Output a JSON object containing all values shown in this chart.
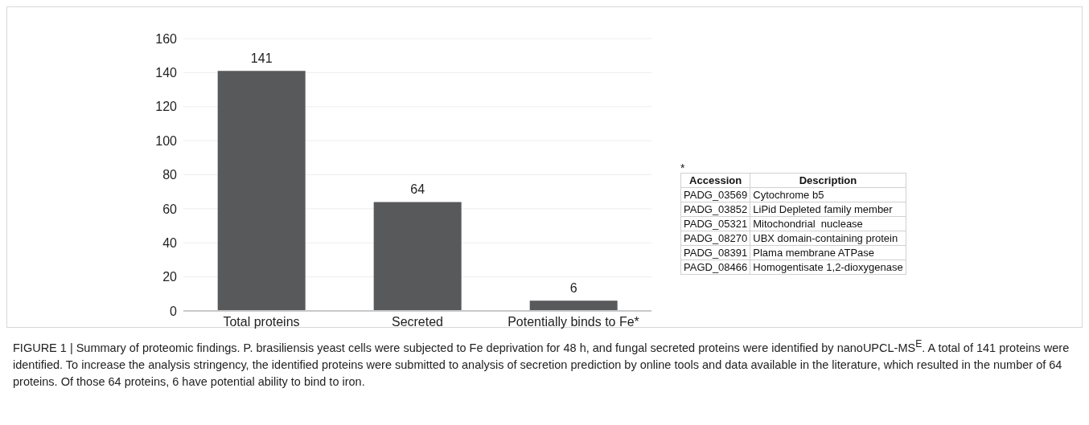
{
  "chart_data": [
    {
      "type": "bar",
      "categories": [
        "Total proteins",
        "Secreted",
        "Potentially binds to Fe*"
      ],
      "values": [
        141,
        64,
        6
      ],
      "color": "#58595b",
      "ylim": [
        0,
        160
      ],
      "yticks": [
        0,
        20,
        40,
        60,
        80,
        100,
        120,
        140,
        160
      ],
      "grid": "y",
      "data_labels": true,
      "annotations": [
        "FIGURE 1 | Summary of proteomic findings. P. brasiliensis yeast cells were subjected to Fe deprivation for 48 h, and fungal secreted proteins were identified by nanoUPCL-MS$^{E}$. A total of 141 proteins were identified. To increase the analysis stringency, the identified proteins were submitted to analysis of secretion prediction by online tools and data available in the literature, which resulted in the number of 64 proteins. Of those 64 proteins, 6 have potential ability to bind to iron."
      ]
    },
    {
      "type": "other",
      "title": "*",
      "categories": [
        "Accession",
        "Description"
      ],
      "annotations": [
        "PADG_03569",
        "Cytochrome b5",
        "PADG_03852",
        "LiPid Depleted family member",
        "PADG_05321",
        "Mitochondrial  nuclease",
        "PADG_08270",
        "UBX domain-containing protein",
        "PADG_08391",
        "Plama membrane ATPase",
        "PAGD_08466",
        "Homogentisate 1,2-dioxygenase"
      ]
    }
  ]
}
